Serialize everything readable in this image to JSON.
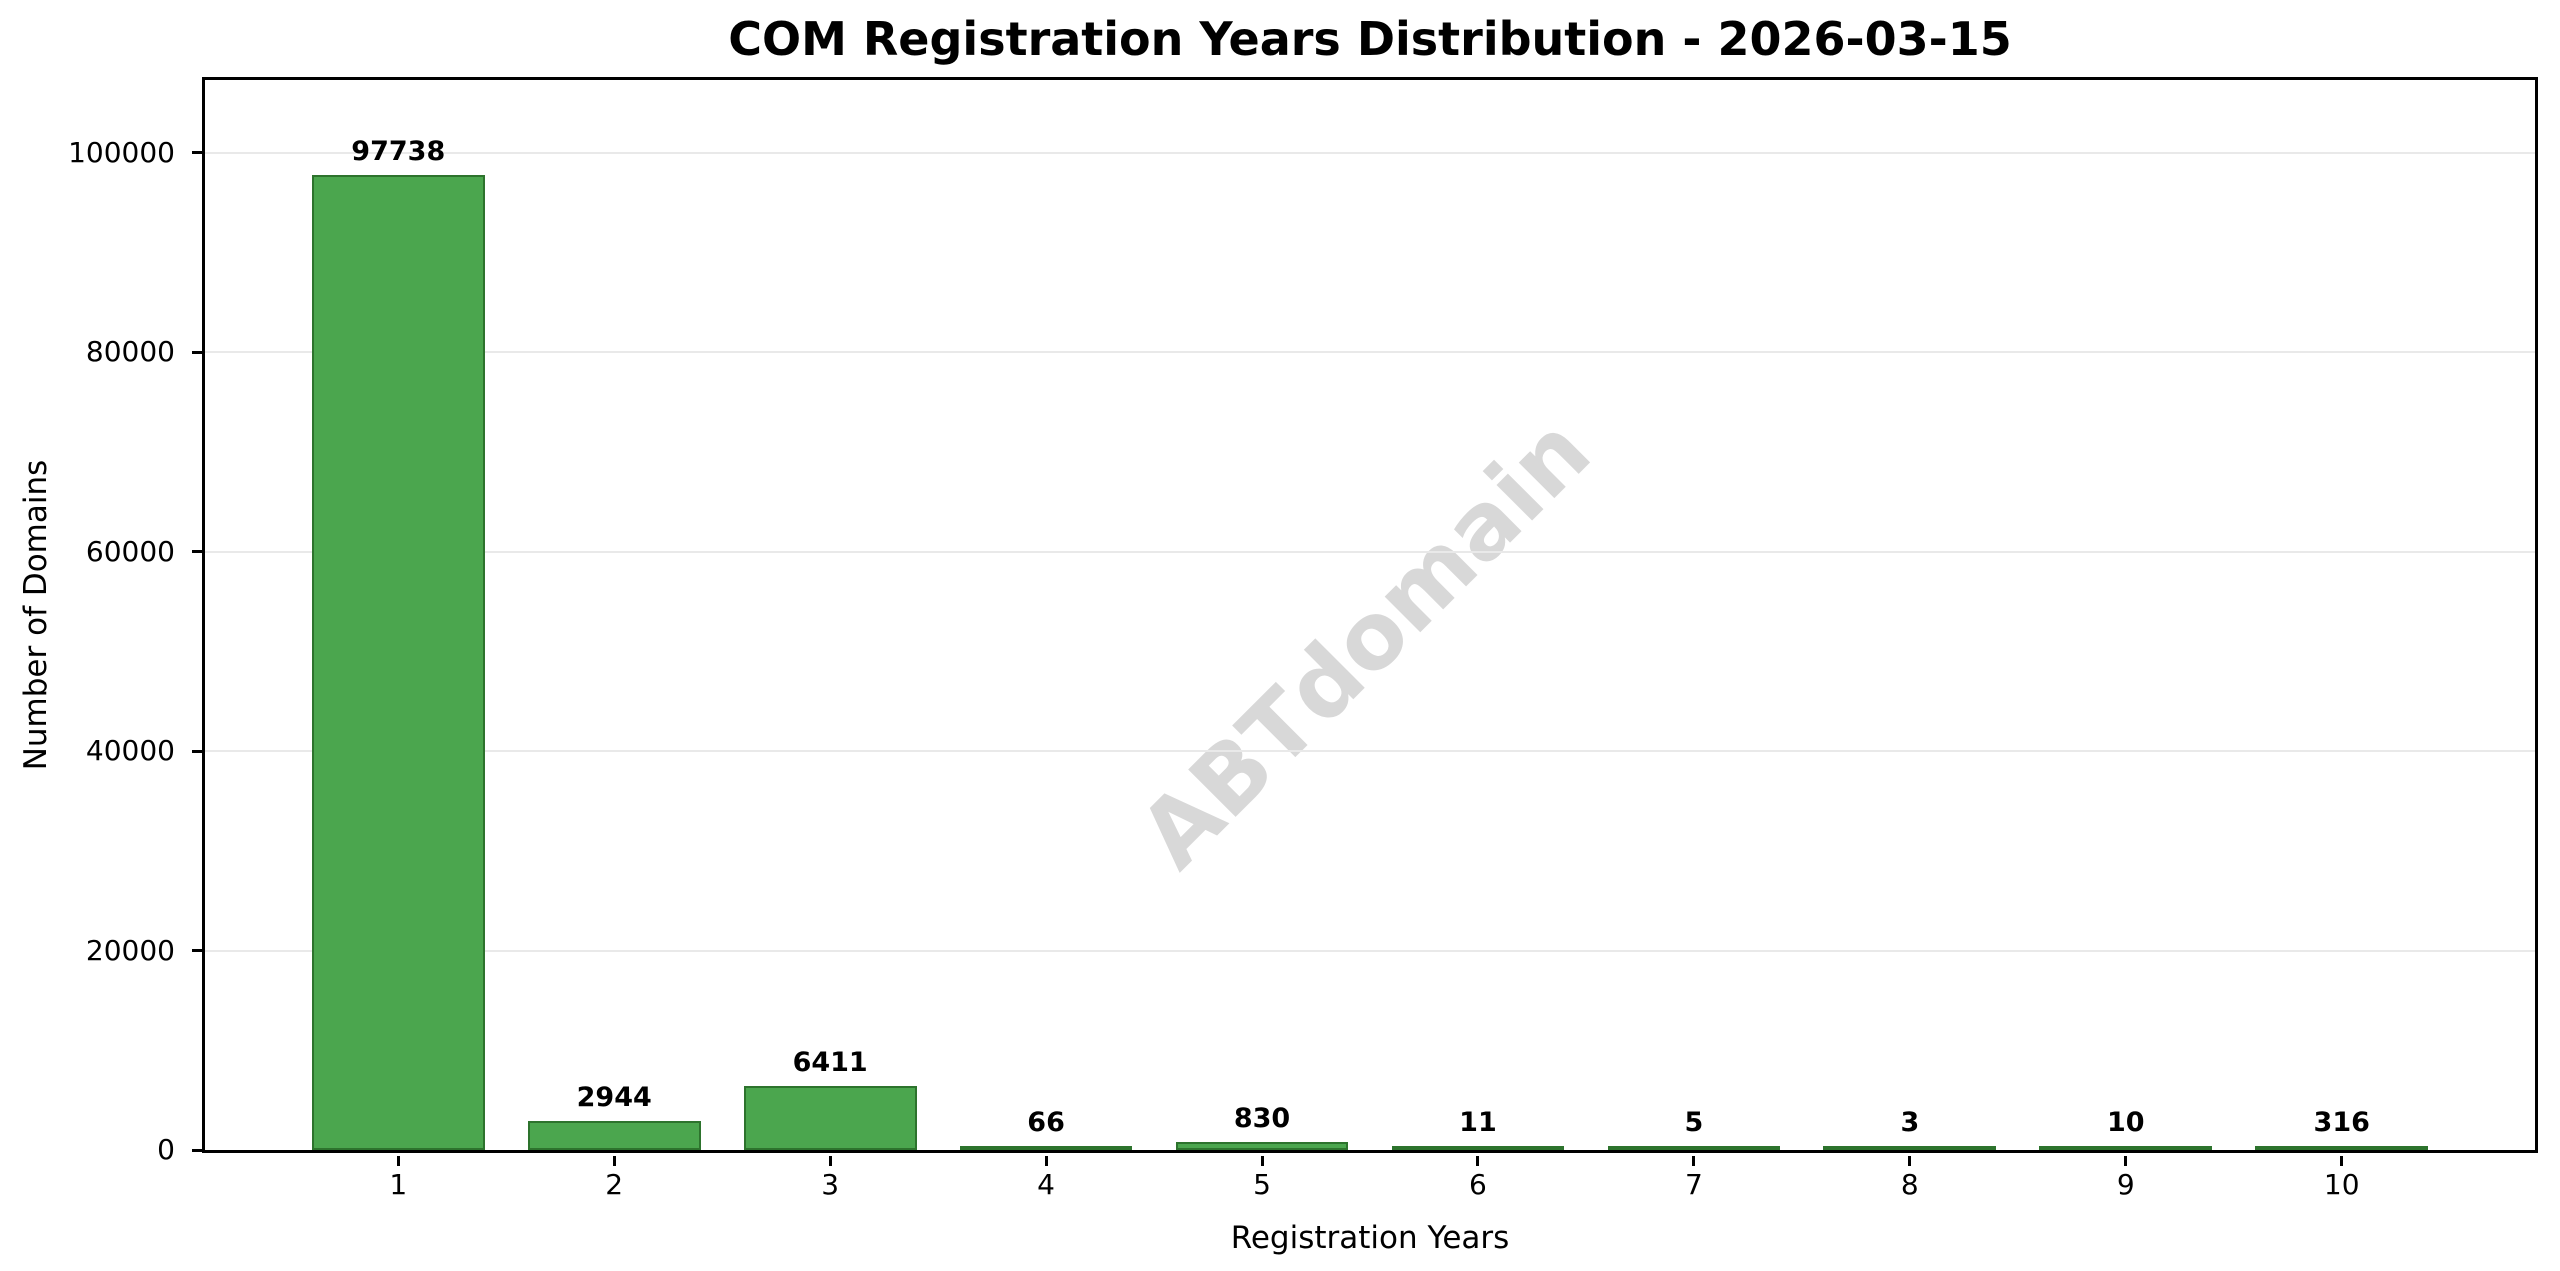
{
  "watermark": {
    "text": "ABTdomain",
    "color": "#d8d8d8"
  },
  "chart_data": {
    "type": "bar",
    "title": "COM Registration Years Distribution - 2026-03-15",
    "xlabel": "Registration Years",
    "ylabel": "Number of Domains",
    "categories": [
      "1",
      "2",
      "3",
      "4",
      "5",
      "6",
      "7",
      "8",
      "9",
      "10"
    ],
    "values": [
      97738,
      2944,
      6411,
      66,
      830,
      11,
      5,
      3,
      10,
      316
    ],
    "bar_value_labels": [
      "97738",
      "2944",
      "6411",
      "66",
      "830",
      "11",
      "5",
      "3",
      "10",
      "316"
    ],
    "yticks": [
      0,
      20000,
      40000,
      60000,
      80000,
      100000
    ],
    "ytick_labels": [
      "0",
      "20000",
      "40000",
      "60000",
      "80000",
      "100000"
    ],
    "ylim": [
      0,
      107300
    ],
    "xlim": [
      0.105,
      10.895
    ],
    "bar_width_fraction": 0.8,
    "grid": "horizontal",
    "legend": "none",
    "colors": {
      "bar_fill": "#4BA64E",
      "bar_edge": "#2D732D",
      "grid": "#e9e9e9",
      "axis": "#000000",
      "text": "#000000",
      "watermark": "#d8d8d8",
      "background": "#ffffff"
    }
  }
}
